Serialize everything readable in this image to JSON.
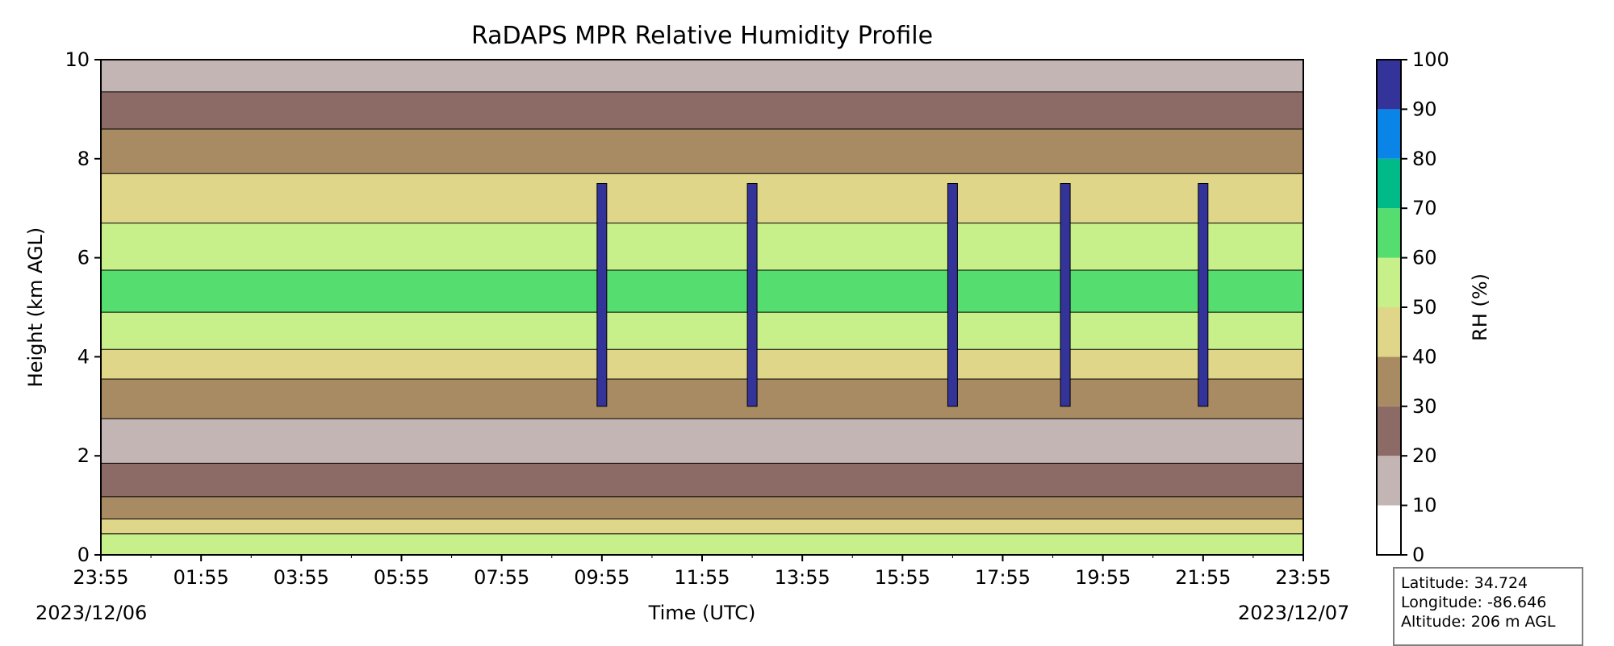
{
  "chart_data": {
    "type": "heatmap",
    "title": "RaDAPS MPR Relative Humidity Profile",
    "xlabel": "Time (UTC)",
    "ylabel": "Height (km AGL)",
    "x_ticks": [
      "23:55",
      "01:55",
      "03:55",
      "05:55",
      "07:55",
      "09:55",
      "11:55",
      "13:55",
      "15:55",
      "17:55",
      "19:55",
      "21:55",
      "23:55"
    ],
    "date_start": "2023/12/06",
    "date_end": "2023/12/07",
    "ylim": [
      0,
      10
    ],
    "y_ticks": [
      0,
      2,
      4,
      6,
      8,
      10
    ],
    "colorbar": {
      "label": "RH (%)",
      "ticks": [
        0,
        10,
        20,
        30,
        40,
        50,
        60,
        70,
        80,
        90,
        100
      ],
      "colors": [
        "#ffffff",
        "#c4b5b5",
        "#8c6b66",
        "#a88b62",
        "#e0d68a",
        "#c8f08a",
        "#55dd70",
        "#00bb88",
        "#0a84e6",
        "#333399"
      ]
    },
    "profile_layers": [
      {
        "height_km": 0.25,
        "rh": 55
      },
      {
        "height_km": 0.6,
        "rh": 45
      },
      {
        "height_km": 0.85,
        "rh": 35
      },
      {
        "height_km": 1.5,
        "rh": 25
      },
      {
        "height_km": 2.2,
        "rh": 15
      },
      {
        "height_km": 3.3,
        "rh": 32
      },
      {
        "height_km": 3.8,
        "rh": 45
      },
      {
        "height_km": 4.5,
        "rh": 56
      },
      {
        "height_km": 5.3,
        "rh": 62
      },
      {
        "height_km": 6.2,
        "rh": 55
      },
      {
        "height_km": 7.2,
        "rh": 45
      },
      {
        "height_km": 8.2,
        "rh": 33
      },
      {
        "height_km": 9.0,
        "rh": 25
      },
      {
        "height_km": 9.7,
        "rh": 15
      }
    ],
    "moist_columns_utc": [
      "09:55",
      "12:55",
      "16:55",
      "19:10",
      "21:55"
    ]
  },
  "info": {
    "latitude": "Latitude: 34.724",
    "longitude": "Longitude: -86.646",
    "altitude": "Altitude: 206 m AGL"
  }
}
